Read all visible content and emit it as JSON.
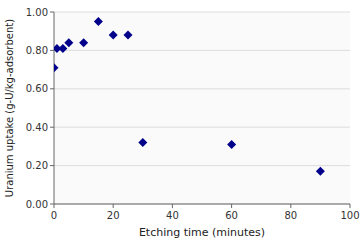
{
  "chart_data": {
    "type": "scatter",
    "x": [
      0,
      1,
      3,
      5,
      10,
      15,
      20,
      25,
      30,
      60,
      90
    ],
    "values": [
      0.71,
      0.81,
      0.81,
      0.84,
      0.84,
      0.95,
      0.88,
      0.88,
      0.32,
      0.31,
      0.17
    ],
    "color": "#00008B",
    "marker": "diamond",
    "xlabel": "Etching time (minutes)",
    "ylabel": "Uranium uptake (g-U/kg-adsorbent)",
    "xlim": [
      0,
      100
    ],
    "ylim": [
      0.0,
      1.0
    ],
    "xticks": [
      0,
      20,
      40,
      60,
      80,
      100
    ],
    "yticks": [
      {
        "value": 0,
        "label": "0.00"
      },
      {
        "value": 0.2,
        "label": "0.20"
      },
      {
        "value": 0.4,
        "label": "0.40"
      },
      {
        "value": 0.6,
        "label": "0.60"
      },
      {
        "value": 0.8,
        "label": "0.80"
      },
      {
        "value": 1.0,
        "label": "1.00"
      }
    ],
    "grid": "y"
  }
}
